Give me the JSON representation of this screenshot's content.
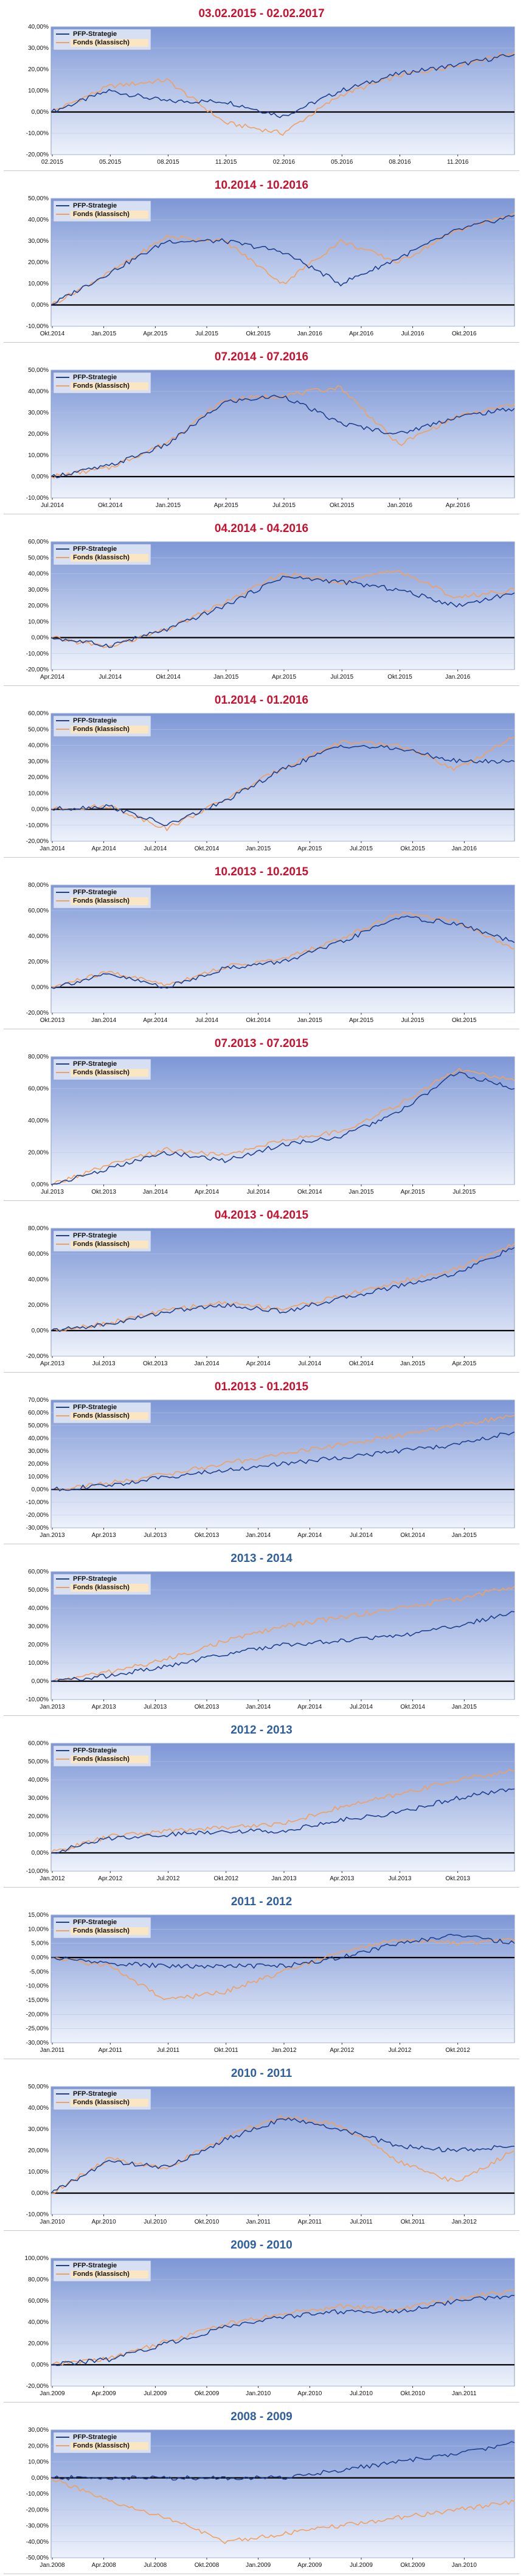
{
  "colors": {
    "pfp": "#1f3f8f",
    "fonds": "#f0a060",
    "title_recent": "#c8102e",
    "title_annual": "#2e5e9e",
    "plot_bg_top": "#7d97d6",
    "plot_bg_bottom": "#eef2fb"
  },
  "chart_data": [
    {
      "type": "line",
      "title": "03.02.2015 - 02.02.2017",
      "title_color": "recent",
      "ylim": [
        -20,
        40
      ],
      "yticks": [
        -20,
        -10,
        0,
        10,
        20,
        30,
        40
      ],
      "xticks": [
        "02.2015",
        "05.2015",
        "08.2015",
        "11.2015",
        "02.2016",
        "05.2016",
        "08.2016",
        "11.2016"
      ],
      "legend": "top-left",
      "grid": true,
      "x": [
        "02.2015",
        "05.2015",
        "08.2015",
        "11.2015",
        "02.2016",
        "05.2016",
        "08.2016",
        "11.2016",
        "02.2017"
      ],
      "series": [
        {
          "name": "PFP-Strategie",
          "values": [
            0,
            10,
            5,
            5,
            -2,
            10,
            18,
            22,
            27
          ]
        },
        {
          "name": "Fonds (klassisch)",
          "values": [
            0,
            12,
            15,
            -5,
            -10,
            8,
            17,
            22,
            28
          ]
        }
      ]
    },
    {
      "type": "line",
      "title": "10.2014 - 10.2016",
      "title_color": "recent",
      "ylim": [
        -10,
        50
      ],
      "yticks": [
        -10,
        0,
        10,
        20,
        30,
        40,
        50
      ],
      "xticks": [
        "Okt.2014",
        "Jan.2015",
        "Apr.2015",
        "Jul.2015",
        "Okt.2015",
        "Jan.2016",
        "Apr.2016",
        "Jul.2016",
        "Okt.2016"
      ],
      "legend": "top-left",
      "grid": true,
      "x": [
        "Okt.2014",
        "Jan.2015",
        "Apr.2015",
        "Jul.2015",
        "Okt.2015",
        "Jan.2016",
        "Apr.2016",
        "Jul.2016",
        "Okt.2016"
      ],
      "series": [
        {
          "name": "PFP-Strategie",
          "values": [
            0,
            15,
            30,
            30,
            25,
            10,
            22,
            35,
            42
          ]
        },
        {
          "name": "Fonds (klassisch)",
          "values": [
            0,
            15,
            32,
            30,
            10,
            30,
            20,
            35,
            43
          ]
        }
      ]
    },
    {
      "type": "line",
      "title": "07.2014 - 07.2016",
      "title_color": "recent",
      "ylim": [
        -10,
        50
      ],
      "yticks": [
        -10,
        0,
        10,
        20,
        30,
        40,
        50
      ],
      "xticks": [
        "Jul.2014",
        "Okt.2014",
        "Jan.2015",
        "Apr.2015",
        "Jul.2015",
        "Okt.2015",
        "Jan.2016",
        "Apr.2016"
      ],
      "legend": "top-left",
      "grid": true,
      "x": [
        "Jul.2014",
        "Okt.2014",
        "Jan.2015",
        "Apr.2015",
        "Jul.2015",
        "Okt.2015",
        "Jan.2016",
        "Apr.2016",
        "Jul.2016"
      ],
      "series": [
        {
          "name": "PFP-Strategie",
          "values": [
            0,
            5,
            15,
            35,
            38,
            25,
            20,
            28,
            32
          ]
        },
        {
          "name": "Fonds (klassisch)",
          "values": [
            0,
            4,
            16,
            36,
            38,
            42,
            15,
            28,
            34
          ]
        }
      ]
    },
    {
      "type": "line",
      "title": "04.2014 - 04.2016",
      "title_color": "recent",
      "ylim": [
        -20,
        60
      ],
      "yticks": [
        -20,
        -10,
        0,
        10,
        20,
        30,
        40,
        50,
        60
      ],
      "xticks": [
        "Apr.2014",
        "Jul.2014",
        "Okt.2014",
        "Jan.2015",
        "Apr.2015",
        "Jul.2015",
        "Okt.2015",
        "Jan.2016"
      ],
      "legend": "top-left",
      "grid": true,
      "x": [
        "Apr.2014",
        "Jul.2014",
        "Okt.2014",
        "Jan.2015",
        "Apr.2015",
        "Jul.2015",
        "Okt.2015",
        "Jan.2016",
        "Apr.2016"
      ],
      "series": [
        {
          "name": "PFP-Strategie",
          "values": [
            0,
            -5,
            5,
            20,
            38,
            35,
            30,
            20,
            28
          ]
        },
        {
          "name": "Fonds (klassisch)",
          "values": [
            0,
            -6,
            5,
            22,
            40,
            35,
            42,
            25,
            30
          ]
        }
      ]
    },
    {
      "type": "line",
      "title": "01.2014 - 01.2016",
      "title_color": "recent",
      "ylim": [
        -20,
        60
      ],
      "yticks": [
        -20,
        -10,
        0,
        10,
        20,
        30,
        40,
        50,
        60
      ],
      "xticks": [
        "Jan.2014",
        "Apr.2014",
        "Jul.2014",
        "Okt.2014",
        "Jan.2015",
        "Apr.2015",
        "Jul.2015",
        "Okt.2015",
        "Jan.2016"
      ],
      "legend": "top-left",
      "grid": true,
      "x": [
        "Jan.2014",
        "Apr.2014",
        "Jul.2014",
        "Okt.2014",
        "Jan.2015",
        "Apr.2015",
        "Jul.2015",
        "Okt.2015",
        "Jan.2016"
      ],
      "series": [
        {
          "name": "PFP-Strategie",
          "values": [
            0,
            2,
            -10,
            5,
            25,
            40,
            38,
            30,
            30
          ]
        },
        {
          "name": "Fonds (klassisch)",
          "values": [
            0,
            2,
            -12,
            6,
            26,
            42,
            40,
            25,
            45
          ]
        }
      ]
    },
    {
      "type": "line",
      "title": "10.2013 - 10.2015",
      "title_color": "recent",
      "ylim": [
        -20,
        80
      ],
      "yticks": [
        -20,
        0,
        20,
        40,
        60,
        80
      ],
      "xticks": [
        "Okt.2013",
        "Jan.2014",
        "Apr.2014",
        "Jul.2014",
        "Okt.2014",
        "Jan.2015",
        "Apr.2015",
        "Jul.2015",
        "Okt.2015"
      ],
      "legend": "top-left",
      "grid": true,
      "x": [
        "Okt.2013",
        "Jan.2014",
        "Apr.2014",
        "Jul.2014",
        "Okt.2014",
        "Jan.2015",
        "Apr.2015",
        "Jul.2015",
        "Okt.2015"
      ],
      "series": [
        {
          "name": "PFP-Strategie",
          "values": [
            0,
            10,
            0,
            15,
            20,
            35,
            55,
            50,
            35
          ]
        },
        {
          "name": "Fonds (klassisch)",
          "values": [
            0,
            12,
            2,
            16,
            22,
            38,
            58,
            52,
            30
          ]
        }
      ]
    },
    {
      "type": "line",
      "title": "07.2013 - 07.2015",
      "title_color": "recent",
      "ylim": [
        0,
        80
      ],
      "yticks": [
        0,
        20,
        40,
        60,
        80
      ],
      "xticks": [
        "Jul.2013",
        "Okt.2013",
        "Jan.2014",
        "Apr.2014",
        "Jul.2014",
        "Okt.2014",
        "Jan.2015",
        "Apr.2015",
        "Jul.2015"
      ],
      "legend": "top-left",
      "grid": true,
      "x": [
        "Jul.2013",
        "Okt.2013",
        "Jan.2014",
        "Apr.2014",
        "Jul.2014",
        "Okt.2014",
        "Jan.2015",
        "Apr.2015",
        "Jul.2015"
      ],
      "series": [
        {
          "name": "PFP-Strategie",
          "values": [
            0,
            10,
            20,
            15,
            25,
            30,
            45,
            70,
            60
          ]
        },
        {
          "name": "Fonds (klassisch)",
          "values": [
            0,
            12,
            22,
            18,
            28,
            33,
            50,
            72,
            65
          ]
        }
      ]
    },
    {
      "type": "line",
      "title": "04.2013 - 04.2015",
      "title_color": "recent",
      "ylim": [
        -20,
        80
      ],
      "yticks": [
        -20,
        0,
        20,
        40,
        60,
        80
      ],
      "xticks": [
        "Apr.2013",
        "Jul.2013",
        "Okt.2013",
        "Jan.2014",
        "Apr.2014",
        "Jul.2014",
        "Okt.2014",
        "Jan.2015",
        "Apr.2015"
      ],
      "legend": "top-left",
      "grid": true,
      "x": [
        "Apr.2013",
        "Jul.2013",
        "Okt.2013",
        "Jan.2014",
        "Apr.2014",
        "Jul.2014",
        "Okt.2014",
        "Jan.2015",
        "Apr.2015"
      ],
      "series": [
        {
          "name": "PFP-Strategie",
          "values": [
            0,
            5,
            15,
            20,
            15,
            25,
            35,
            45,
            65
          ]
        },
        {
          "name": "Fonds (klassisch)",
          "values": [
            0,
            6,
            16,
            22,
            17,
            27,
            38,
            48,
            68
          ]
        }
      ]
    },
    {
      "type": "line",
      "title": "01.2013 - 01.2015",
      "title_color": "recent",
      "ylim": [
        -30,
        70
      ],
      "yticks": [
        -30,
        -20,
        -10,
        0,
        10,
        20,
        30,
        40,
        50,
        60,
        70
      ],
      "xticks": [
        "Jan.2013",
        "Apr.2013",
        "Jul.2013",
        "Okt.2013",
        "Jan.2014",
        "Apr.2014",
        "Jul.2014",
        "Okt.2014",
        "Jan.2015"
      ],
      "legend": "top-left",
      "grid": true,
      "x": [
        "Jan.2013",
        "Apr.2013",
        "Jul.2013",
        "Okt.2013",
        "Jan.2014",
        "Apr.2014",
        "Jul.2014",
        "Okt.2014",
        "Jan.2015"
      ],
      "series": [
        {
          "name": "PFP-Strategie",
          "values": [
            0,
            3,
            10,
            15,
            20,
            25,
            30,
            35,
            45
          ]
        },
        {
          "name": "Fonds (klassisch)",
          "values": [
            0,
            5,
            12,
            20,
            28,
            35,
            42,
            50,
            58
          ]
        }
      ]
    },
    {
      "type": "line",
      "title": "2013 - 2014",
      "title_color": "annual",
      "ylim": [
        -10,
        60
      ],
      "yticks": [
        -10,
        0,
        10,
        20,
        30,
        40,
        50,
        60
      ],
      "xticks": [
        "Jan.2013",
        "Apr.2013",
        "Jul.2013",
        "Okt.2013",
        "Jan.2014",
        "Apr.2014",
        "Jul.2014",
        "Okt.2014",
        "Jan.2015"
      ],
      "legend": "top-left",
      "grid": true,
      "x": [
        "Jan.2013",
        "Apr.2013",
        "Jul.2013",
        "Okt.2013",
        "Jan.2014",
        "Apr.2014",
        "Jul.2014",
        "Okt.2014",
        "Jan.2015"
      ],
      "series": [
        {
          "name": "PFP-Strategie",
          "values": [
            0,
            3,
            8,
            15,
            20,
            22,
            25,
            30,
            38
          ]
        },
        {
          "name": "Fonds (klassisch)",
          "values": [
            0,
            5,
            12,
            22,
            30,
            35,
            40,
            45,
            52
          ]
        }
      ]
    },
    {
      "type": "line",
      "title": "2012 - 2013",
      "title_color": "annual",
      "ylim": [
        -10,
        60
      ],
      "yticks": [
        -10,
        0,
        10,
        20,
        30,
        40,
        50,
        60
      ],
      "xticks": [
        "Jan.2012",
        "Apr.2012",
        "Jul.2012",
        "Okt.2012",
        "Jan.2013",
        "Apr.2013",
        "Jul.2013",
        "Okt.2013"
      ],
      "legend": "top-left",
      "grid": true,
      "x": [
        "Jan.2012",
        "Apr.2012",
        "Jul.2012",
        "Okt.2012",
        "Jan.2013",
        "Apr.2013",
        "Jul.2013",
        "Okt.2013",
        "Jan.2014"
      ],
      "series": [
        {
          "name": "PFP-Strategie",
          "values": [
            0,
            8,
            10,
            12,
            12,
            18,
            22,
            30,
            35
          ]
        },
        {
          "name": "Fonds (klassisch)",
          "values": [
            0,
            9,
            12,
            14,
            16,
            25,
            32,
            40,
            45
          ]
        }
      ]
    },
    {
      "type": "line",
      "title": "2011 - 2012",
      "title_color": "annual",
      "ylim": [
        -30,
        15
      ],
      "yticks": [
        -30,
        -25,
        -20,
        -15,
        -10,
        -5,
        0,
        5,
        10,
        15
      ],
      "xticks": [
        "Jan.2011",
        "Apr.2011",
        "Jul.2011",
        "Okt.2011",
        "Jan.2012",
        "Apr.2012",
        "Jul.2012",
        "Okt.2012"
      ],
      "legend": "top-left",
      "grid": true,
      "x": [
        "Jan.2011",
        "Apr.2011",
        "Jul.2011",
        "Okt.2011",
        "Jan.2012",
        "Apr.2012",
        "Jul.2012",
        "Okt.2012",
        "Jan.2013"
      ],
      "series": [
        {
          "name": "PFP-Strategie",
          "values": [
            0,
            -2,
            -3,
            -3,
            -3,
            0,
            5,
            8,
            5
          ]
        },
        {
          "name": "Fonds (klassisch)",
          "values": [
            0,
            -3,
            -15,
            -12,
            -5,
            2,
            6,
            5,
            6
          ]
        }
      ]
    },
    {
      "type": "line",
      "title": "2010 - 2011",
      "title_color": "annual",
      "ylim": [
        -10,
        50
      ],
      "yticks": [
        -10,
        0,
        10,
        20,
        30,
        40,
        50
      ],
      "xticks": [
        "Jan.2010",
        "Apr.2010",
        "Jul.2010",
        "Okt.2010",
        "Jan.2011",
        "Apr.2011",
        "Jul.2011",
        "Okt.2011",
        "Jan.2012"
      ],
      "legend": "top-left",
      "grid": true,
      "x": [
        "Jan.2010",
        "Apr.2010",
        "Jul.2010",
        "Okt.2010",
        "Jan.2011",
        "Apr.2011",
        "Jul.2011",
        "Okt.2011",
        "Jan.2012"
      ],
      "series": [
        {
          "name": "PFP-Strategie",
          "values": [
            0,
            15,
            12,
            25,
            35,
            30,
            22,
            20,
            22
          ]
        },
        {
          "name": "Fonds (klassisch)",
          "values": [
            0,
            16,
            12,
            26,
            36,
            32,
            15,
            5,
            20
          ]
        }
      ]
    },
    {
      "type": "line",
      "title": "2009 - 2010",
      "title_color": "annual",
      "ylim": [
        -20,
        100
      ],
      "yticks": [
        -20,
        0,
        20,
        40,
        60,
        80,
        100
      ],
      "xticks": [
        "Jan.2009",
        "Apr.2009",
        "Jul.2009",
        "Okt.2009",
        "Jan.2010",
        "Apr.2010",
        "Jul.2010",
        "Okt.2010",
        "Jan.2011"
      ],
      "legend": "top-left",
      "grid": true,
      "x": [
        "Jan.2009",
        "Apr.2009",
        "Jul.2009",
        "Okt.2009",
        "Jan.2010",
        "Apr.2010",
        "Jul.2010",
        "Okt.2010",
        "Jan.2011"
      ],
      "series": [
        {
          "name": "PFP-Strategie",
          "values": [
            0,
            5,
            20,
            35,
            45,
            50,
            50,
            60,
            65
          ]
        },
        {
          "name": "Fonds (klassisch)",
          "values": [
            0,
            6,
            22,
            38,
            48,
            55,
            52,
            62,
            70
          ]
        }
      ]
    },
    {
      "type": "line",
      "title": "2008 - 2009",
      "title_color": "annual",
      "ylim": [
        -50,
        30
      ],
      "yticks": [
        -50,
        -40,
        -30,
        -20,
        -10,
        0,
        10,
        20,
        30
      ],
      "xticks": [
        "Jan.2008",
        "Apr.2008",
        "Jul.2008",
        "Okt.2008",
        "Jan.2009",
        "Apr.2009",
        "Jul.2009",
        "Okt.2009",
        "Jan.2010"
      ],
      "legend": "top-left",
      "grid": true,
      "x": [
        "Jan.2008",
        "Apr.2008",
        "Jul.2008",
        "Okt.2008",
        "Jan.2009",
        "Apr.2009",
        "Jul.2009",
        "Okt.2009",
        "Jan.2010"
      ],
      "series": [
        {
          "name": "PFP-Strategie",
          "values": [
            0,
            0,
            0,
            0,
            0,
            5,
            10,
            15,
            22
          ]
        },
        {
          "name": "Fonds (klassisch)",
          "values": [
            0,
            -15,
            -25,
            -40,
            -35,
            -30,
            -25,
            -20,
            -15
          ]
        }
      ]
    }
  ]
}
